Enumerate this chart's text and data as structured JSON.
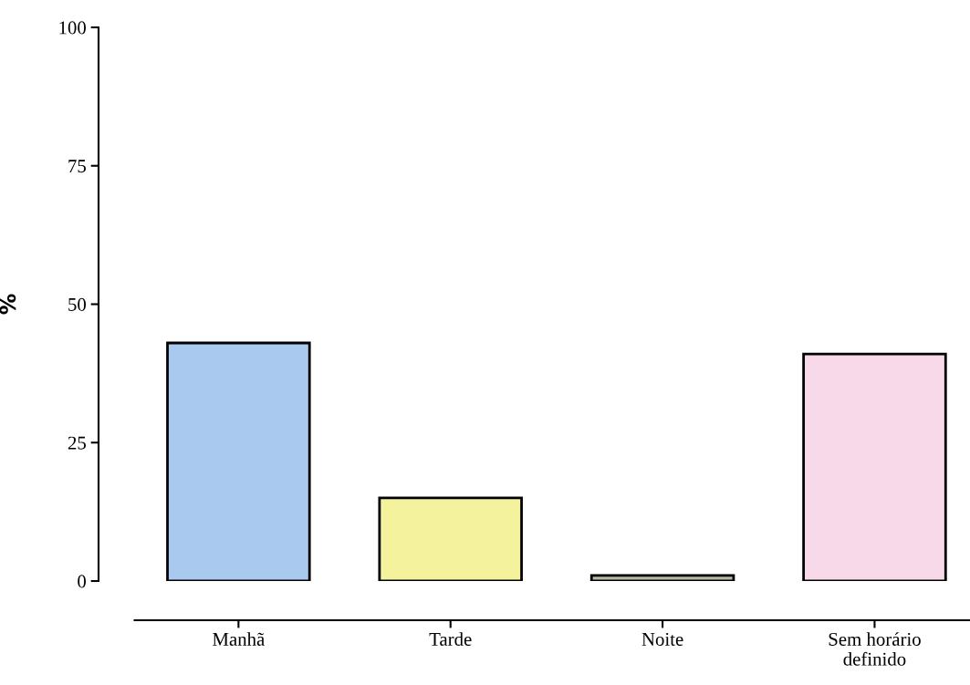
{
  "chart_data": {
    "type": "bar",
    "ylabel": "%",
    "categories": [
      "Manhã",
      "Tarde",
      "Noite",
      "Sem horário\ndefinido"
    ],
    "values": [
      43,
      15,
      1,
      41
    ],
    "colors": [
      "#a9c9ef",
      "#f4f29c",
      "#b9b8a2",
      "#f8d9e9"
    ],
    "ylim": [
      0,
      100
    ],
    "yticks": [
      0,
      25,
      50,
      75,
      100
    ],
    "grid": false
  }
}
